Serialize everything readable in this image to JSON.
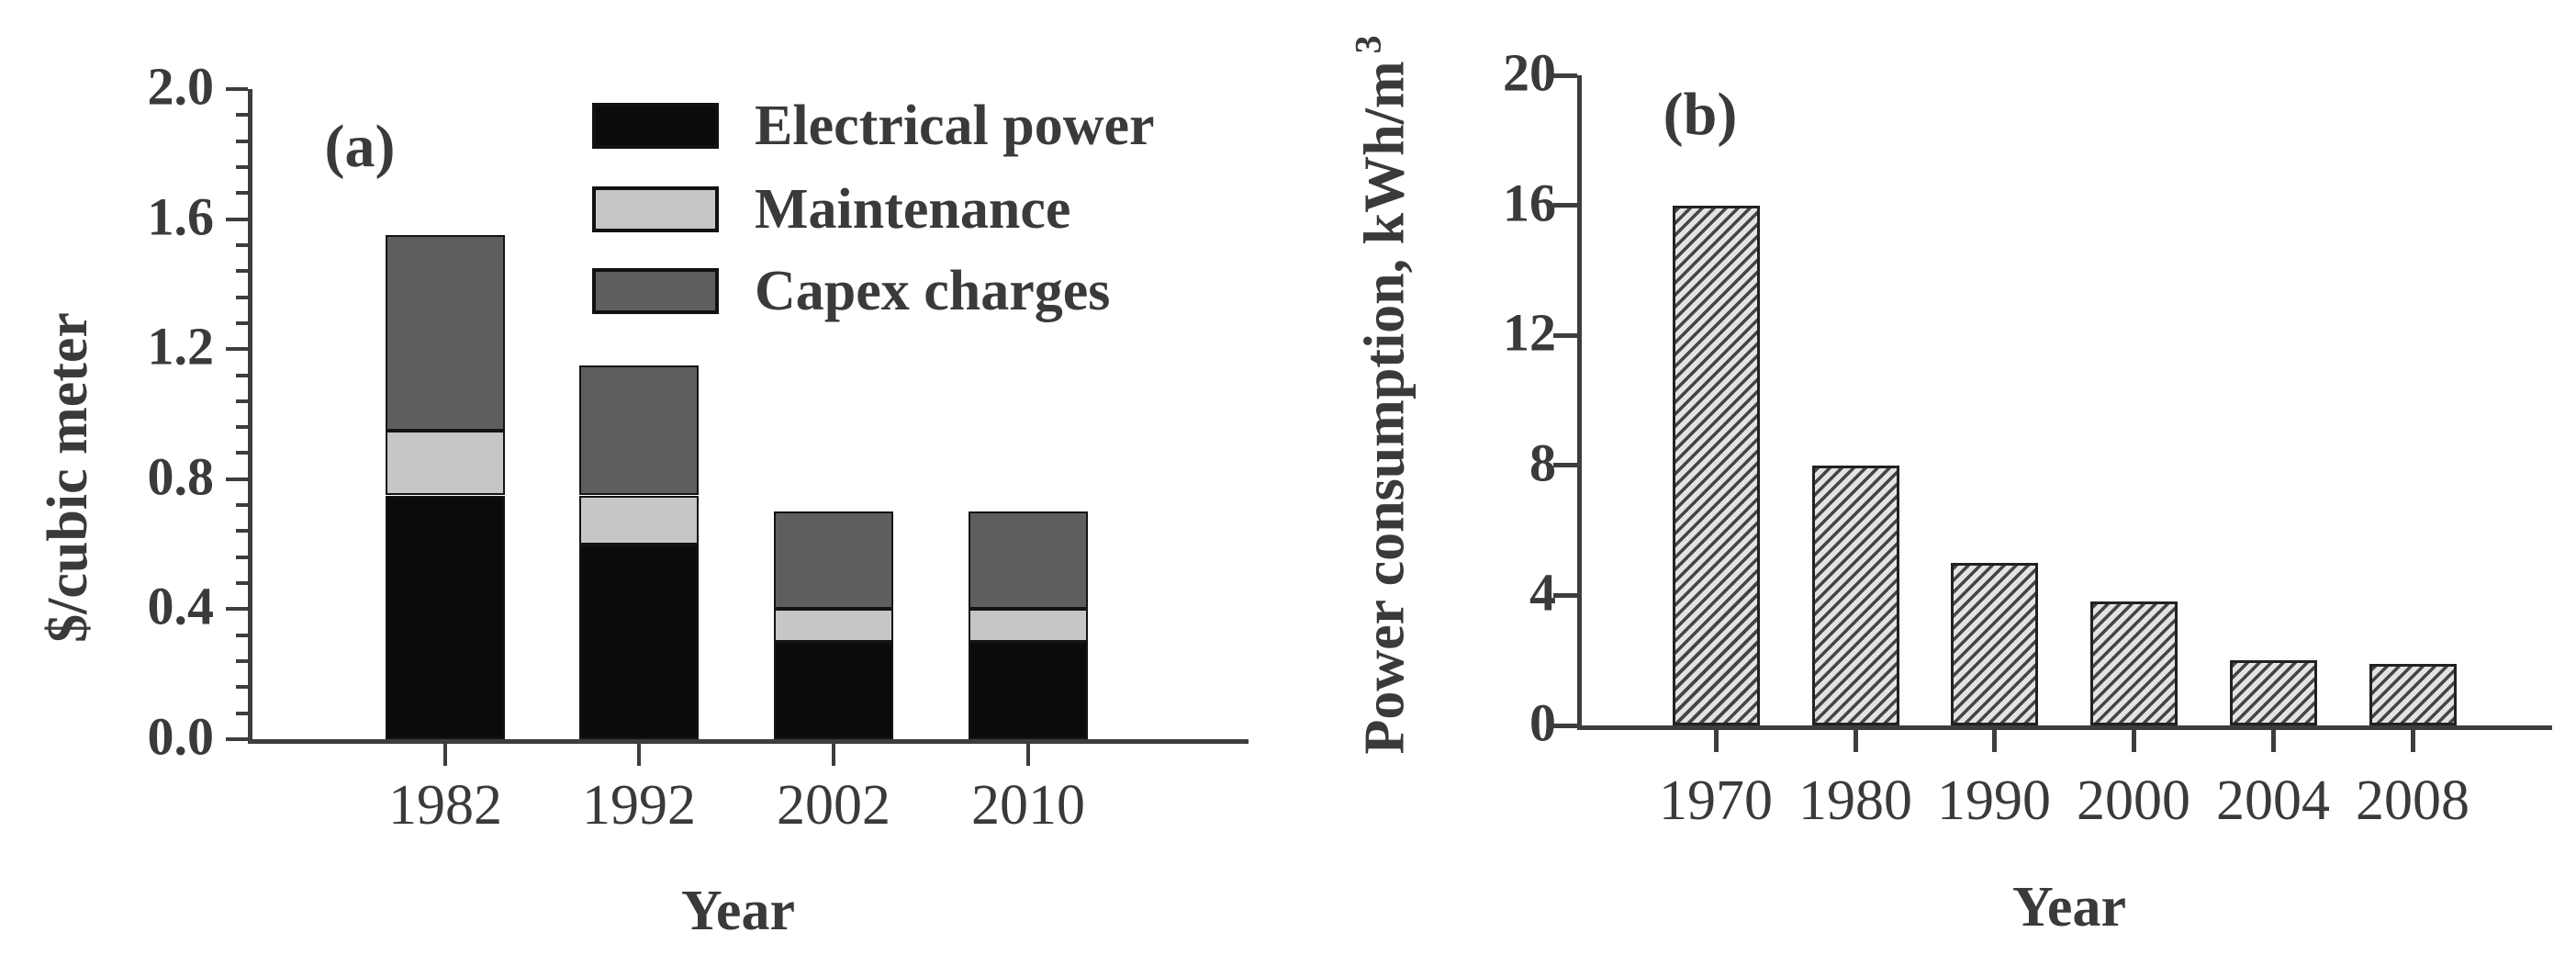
{
  "figure": {
    "background": "#ffffff",
    "panels": [
      {
        "panel_label": "(a)",
        "xlabel": "Year",
        "ylabel": "$/cubic meter"
      },
      {
        "panel_label": "(b)",
        "xlabel": "Year",
        "ylabel": "Power consumption, kWh/m³"
      }
    ]
  },
  "colors": {
    "electrical_power": "#0b0b0b",
    "maintenance": "#c6c6c6",
    "capex_charges": "#5e5e5e",
    "hatch_stripe": "#454545",
    "hatch_background": "#e3e3e3",
    "axis": "#3d3d3d",
    "text": "#3a3a3a"
  },
  "chart_data": [
    {
      "type": "bar",
      "subtype": "stacked",
      "panel_label": "(a)",
      "title": "",
      "categories": [
        "1982",
        "1992",
        "2002",
        "2010"
      ],
      "series": [
        {
          "name": "Electrical power",
          "color": "#0b0b0b",
          "values": [
            0.75,
            0.6,
            0.3,
            0.3
          ]
        },
        {
          "name": "Maintenance",
          "color": "#c6c6c6",
          "values": [
            0.2,
            0.15,
            0.1,
            0.1
          ]
        },
        {
          "name": "Capex charges",
          "color": "#5e5e5e",
          "values": [
            0.6,
            0.4,
            0.3,
            0.3
          ]
        }
      ],
      "stack_totals": [
        1.55,
        1.15,
        0.7,
        0.7
      ],
      "xlabel": "Year",
      "ylabel": "$/cubic meter",
      "ylim": [
        0.0,
        2.0
      ],
      "yticks": [
        0.0,
        0.4,
        0.8,
        1.2,
        1.6,
        2.0
      ],
      "ytick_labels": [
        "0.0",
        "0.4",
        "0.8",
        "1.2",
        "1.6",
        "2.0"
      ],
      "minor_tick_step": 0.08,
      "grid": false,
      "legend_position": "top-right-inside"
    },
    {
      "type": "bar",
      "subtype": "single",
      "panel_label": "(b)",
      "title": "",
      "categories": [
        "1970",
        "1980",
        "1990",
        "2000",
        "2004",
        "2008"
      ],
      "values": [
        16,
        8,
        5,
        3.8,
        2.0,
        1.9
      ],
      "xlabel": "Year",
      "ylabel": "Power consumption, kWh/m³",
      "ylabel_main": "Power consumption, kWh/m",
      "ylabel_superscript": "3",
      "ylim": [
        0,
        20
      ],
      "yticks": [
        0,
        4,
        8,
        12,
        16,
        20
      ],
      "ytick_labels": [
        "0",
        "4",
        "8",
        "12",
        "16",
        "20"
      ],
      "bar_fill": "diagonal-hatch",
      "hatch_direction": "/",
      "grid": false,
      "legend_position": "none"
    }
  ]
}
